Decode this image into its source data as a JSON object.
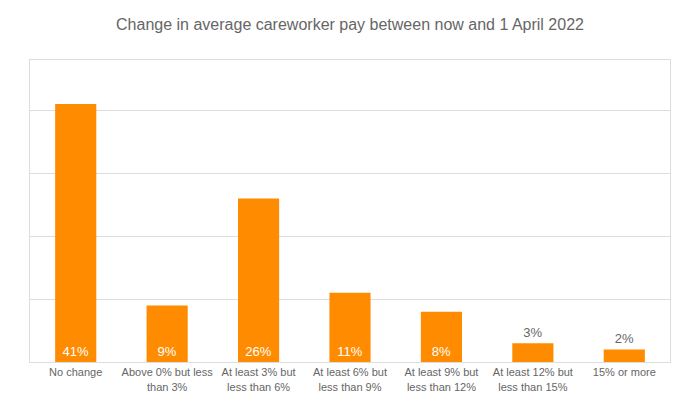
{
  "chart_data": {
    "type": "bar",
    "title": "Change in average careworker pay between now and 1 April 2022",
    "categories": [
      "No change",
      "Above 0% but less\nthan 3%",
      "At least 3% but\nless than 6%",
      "At least 6% but\nless than 9%",
      "At least 9% but\nless than 12%",
      "At least 12% but\nless than 15%",
      "15% or more"
    ],
    "values": [
      41,
      9,
      26,
      11,
      8,
      3,
      2
    ],
    "value_labels": [
      "41%",
      "9%",
      "26%",
      "11%",
      "8%",
      "3%",
      "2%"
    ],
    "data_labels": true,
    "color": "#FF8C00",
    "ylim": [
      0,
      48
    ],
    "yticks": [
      0,
      10,
      20,
      30,
      40
    ],
    "grid": true,
    "tick_labels": "x"
  }
}
